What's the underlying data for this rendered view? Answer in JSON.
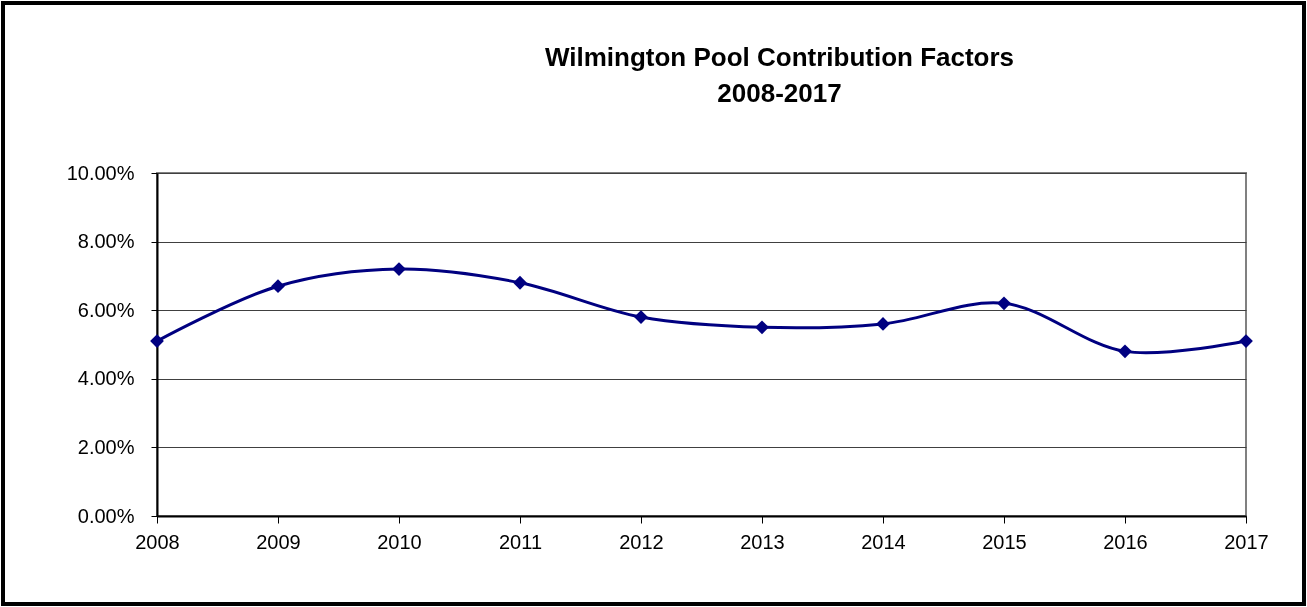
{
  "chart_data": {
    "type": "line",
    "title": "Wilmington Pool Contribution Factors",
    "subtitle": "2008-2017",
    "categories": [
      "2008",
      "2009",
      "2010",
      "2011",
      "2012",
      "2013",
      "2014",
      "2015",
      "2016",
      "2017"
    ],
    "series": [
      {
        "color": "#000080",
        "values": [
          5.1,
          6.7,
          7.2,
          6.8,
          5.8,
          5.5,
          5.6,
          6.2,
          4.8,
          5.1
        ]
      }
    ],
    "ylim": [
      0,
      10
    ],
    "yticks": [
      {
        "value": 0,
        "label": "0.00%"
      },
      {
        "value": 2,
        "label": "2.00%"
      },
      {
        "value": 4,
        "label": "4.00%"
      },
      {
        "value": 6,
        "label": "6.00%"
      },
      {
        "value": 8,
        "label": "8.00%"
      },
      {
        "value": 10,
        "label": "10.00%"
      }
    ],
    "grid": "y",
    "marker": "diamond",
    "line_style": "solid"
  }
}
